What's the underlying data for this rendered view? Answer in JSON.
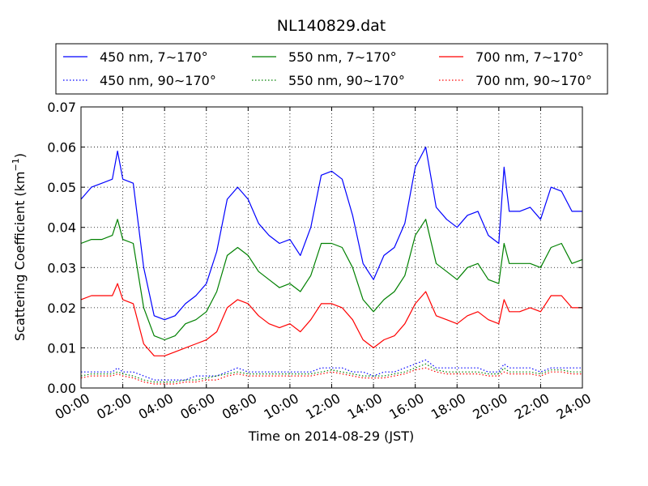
{
  "chart_data": {
    "type": "line",
    "title": "NL140829.dat",
    "xlabel": "Time on 2014-08-29 (JST)",
    "ylabel": "Scattering Coefficient (km",
    "ylabel_sup": "−1",
    "ylabel_end": ")",
    "xlim": [
      "00:00",
      "24:00"
    ],
    "ylim": [
      0,
      0.07
    ],
    "grid": true,
    "legend_position": "top",
    "x_ticks": [
      "00:00",
      "02:00",
      "04:00",
      "06:00",
      "08:00",
      "10:00",
      "12:00",
      "14:00",
      "16:00",
      "18:00",
      "20:00",
      "22:00",
      "24:00"
    ],
    "y_ticks": [
      "0.00",
      "0.01",
      "0.02",
      "0.03",
      "0.04",
      "0.05",
      "0.06",
      "0.07"
    ],
    "x": [
      "00:00",
      "00:30",
      "01:00",
      "01:30",
      "01:45",
      "02:00",
      "02:30",
      "03:00",
      "03:30",
      "04:00",
      "04:30",
      "05:00",
      "05:30",
      "06:00",
      "06:30",
      "07:00",
      "07:30",
      "08:00",
      "08:30",
      "09:00",
      "09:30",
      "10:00",
      "10:30",
      "11:00",
      "11:30",
      "12:00",
      "12:30",
      "13:00",
      "13:30",
      "14:00",
      "14:30",
      "15:00",
      "15:30",
      "16:00",
      "16:30",
      "17:00",
      "17:30",
      "18:00",
      "18:30",
      "19:00",
      "19:30",
      "20:00",
      "20:15",
      "20:30",
      "21:00",
      "21:30",
      "22:00",
      "22:30",
      "23:00",
      "23:30",
      "24:00"
    ],
    "series": [
      {
        "name": "450 nm, 7∼170°",
        "color": "#0000ff",
        "style": "solid",
        "values": [
          0.047,
          0.05,
          0.051,
          0.052,
          0.059,
          0.052,
          0.051,
          0.03,
          0.018,
          0.017,
          0.018,
          0.021,
          0.023,
          0.026,
          0.034,
          0.047,
          0.05,
          0.047,
          0.041,
          0.038,
          0.036,
          0.037,
          0.033,
          0.04,
          0.053,
          0.054,
          0.052,
          0.043,
          0.031,
          0.027,
          0.033,
          0.035,
          0.041,
          0.055,
          0.06,
          0.045,
          0.042,
          0.04,
          0.043,
          0.044,
          0.038,
          0.036,
          0.055,
          0.044,
          0.044,
          0.045,
          0.042,
          0.05,
          0.049,
          0.044,
          0.044
        ]
      },
      {
        "name": "550 nm, 7∼170°",
        "color": "#008000",
        "style": "solid",
        "values": [
          0.036,
          0.037,
          0.037,
          0.038,
          0.042,
          0.037,
          0.036,
          0.02,
          0.013,
          0.012,
          0.013,
          0.016,
          0.017,
          0.019,
          0.024,
          0.033,
          0.035,
          0.033,
          0.029,
          0.027,
          0.025,
          0.026,
          0.024,
          0.028,
          0.036,
          0.036,
          0.035,
          0.03,
          0.022,
          0.019,
          0.022,
          0.024,
          0.028,
          0.038,
          0.042,
          0.031,
          0.029,
          0.027,
          0.03,
          0.031,
          0.027,
          0.026,
          0.036,
          0.031,
          0.031,
          0.031,
          0.03,
          0.035,
          0.036,
          0.031,
          0.032
        ]
      },
      {
        "name": "700 nm, 7∼170°",
        "color": "#ff0000",
        "style": "solid",
        "values": [
          0.022,
          0.023,
          0.023,
          0.023,
          0.026,
          0.022,
          0.021,
          0.011,
          0.008,
          0.008,
          0.009,
          0.01,
          0.011,
          0.012,
          0.014,
          0.02,
          0.022,
          0.021,
          0.018,
          0.016,
          0.015,
          0.016,
          0.014,
          0.017,
          0.021,
          0.021,
          0.02,
          0.017,
          0.012,
          0.01,
          0.012,
          0.013,
          0.016,
          0.021,
          0.024,
          0.018,
          0.017,
          0.016,
          0.018,
          0.019,
          0.017,
          0.016,
          0.022,
          0.019,
          0.019,
          0.02,
          0.019,
          0.023,
          0.023,
          0.02,
          0.02
        ]
      },
      {
        "name": "450 nm, 90∼170°",
        "color": "#0000ff",
        "style": "dotted",
        "values": [
          0.004,
          0.004,
          0.004,
          0.004,
          0.005,
          0.004,
          0.004,
          0.003,
          0.002,
          0.002,
          0.002,
          0.002,
          0.003,
          0.003,
          0.003,
          0.004,
          0.005,
          0.004,
          0.004,
          0.004,
          0.004,
          0.004,
          0.004,
          0.004,
          0.005,
          0.005,
          0.005,
          0.004,
          0.004,
          0.003,
          0.004,
          0.004,
          0.005,
          0.006,
          0.007,
          0.005,
          0.005,
          0.005,
          0.005,
          0.005,
          0.004,
          0.004,
          0.006,
          0.005,
          0.005,
          0.005,
          0.004,
          0.005,
          0.005,
          0.005,
          0.005
        ]
      },
      {
        "name": "550 nm, 90∼170°",
        "color": "#008000",
        "style": "dotted",
        "values": [
          0.003,
          0.0035,
          0.0035,
          0.0035,
          0.004,
          0.0035,
          0.003,
          0.002,
          0.0015,
          0.0015,
          0.0015,
          0.002,
          0.002,
          0.0025,
          0.003,
          0.0035,
          0.004,
          0.0035,
          0.0035,
          0.0035,
          0.0035,
          0.0035,
          0.0035,
          0.0035,
          0.004,
          0.0045,
          0.004,
          0.0035,
          0.003,
          0.003,
          0.003,
          0.0035,
          0.004,
          0.005,
          0.006,
          0.0045,
          0.004,
          0.004,
          0.004,
          0.004,
          0.0035,
          0.0035,
          0.005,
          0.004,
          0.004,
          0.004,
          0.0035,
          0.0045,
          0.0045,
          0.004,
          0.004
        ]
      },
      {
        "name": "700 nm, 90∼170°",
        "color": "#ff0000",
        "style": "dotted",
        "values": [
          0.0025,
          0.003,
          0.003,
          0.003,
          0.0035,
          0.003,
          0.0025,
          0.0015,
          0.001,
          0.001,
          0.001,
          0.0015,
          0.0015,
          0.002,
          0.002,
          0.003,
          0.0035,
          0.003,
          0.003,
          0.003,
          0.003,
          0.003,
          0.003,
          0.003,
          0.0035,
          0.004,
          0.0035,
          0.003,
          0.0025,
          0.0025,
          0.0025,
          0.003,
          0.0035,
          0.0045,
          0.005,
          0.004,
          0.0035,
          0.0035,
          0.0035,
          0.0035,
          0.003,
          0.003,
          0.004,
          0.0035,
          0.0035,
          0.0035,
          0.003,
          0.004,
          0.004,
          0.0035,
          0.0035
        ]
      }
    ]
  }
}
